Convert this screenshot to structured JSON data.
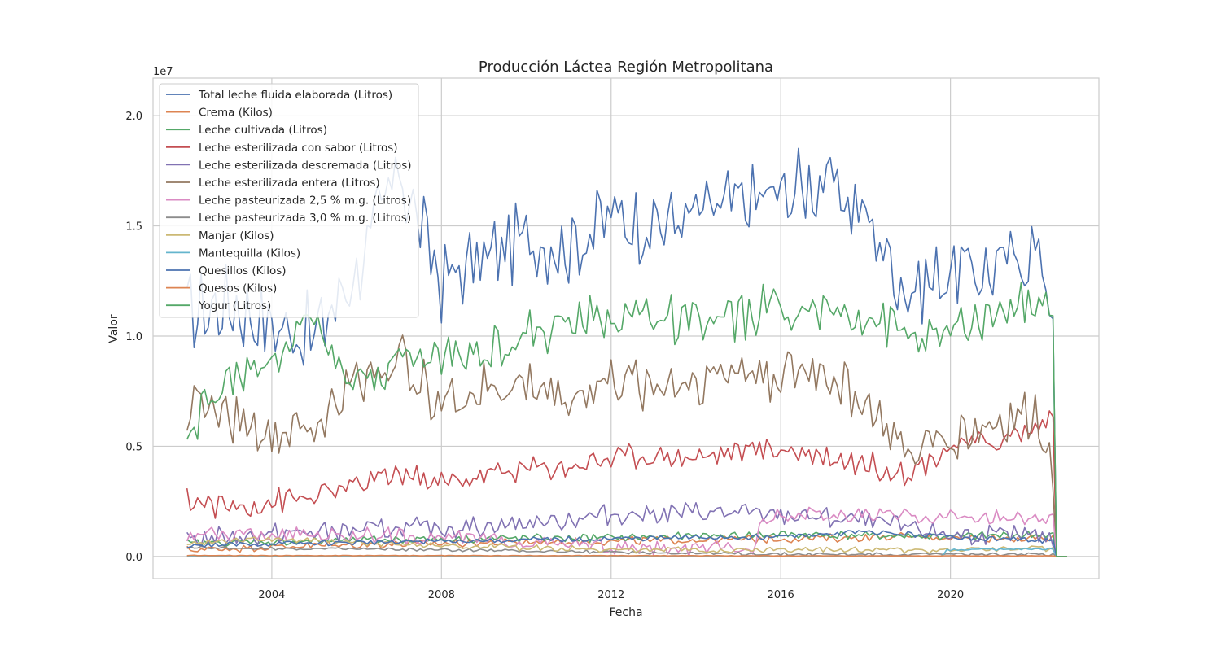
{
  "chart_data": {
    "type": "line",
    "title": "Producción Láctea Región Metropolitana",
    "xlabel": "Fecha",
    "ylabel": "Valor",
    "y_offset_text": "1e7",
    "xlim": [
      2001.2,
      2023.5
    ],
    "ylim": [
      -1000000,
      21700000
    ],
    "x_ticks": [
      2004,
      2008,
      2012,
      2016,
      2020
    ],
    "x_tick_labels": [
      "2004",
      "2008",
      "2012",
      "2016",
      "2020"
    ],
    "y_ticks": [
      0,
      5000000,
      10000000,
      15000000,
      20000000
    ],
    "y_tick_labels": [
      "0.0",
      "0.5",
      "1.0",
      "1.5",
      "2.0"
    ],
    "grid": true,
    "legend_position": "top-left",
    "series": [
      {
        "name": "Total leche fluida elaborada (Litros)",
        "color": "#4c72b0",
        "x": [
          2002,
          2003,
          2004,
          2005,
          2006,
          2007,
          2008,
          2009,
          2010,
          2011,
          2012,
          2013,
          2014,
          2015,
          2016,
          2017,
          2018,
          2019,
          2020,
          2021,
          2022,
          2022.45,
          2022.5,
          2022.6,
          2022.8
        ],
        "values": [
          11000000,
          11500000,
          10500000,
          10000000,
          13000000,
          17500000,
          12500000,
          13500000,
          14500000,
          14000000,
          15500000,
          15000000,
          15500000,
          16000000,
          16500000,
          17000000,
          15500000,
          12000000,
          13000000,
          13000000,
          14000000,
          11500000,
          0,
          0,
          0
        ],
        "amp": 1500000
      },
      {
        "name": "Crema (Kilos)",
        "color": "#dd8452",
        "x": [
          2002,
          2005,
          2008,
          2012,
          2016,
          2019,
          2022.45,
          2022.5,
          2022.8
        ],
        "values": [
          300000,
          500000,
          600000,
          700000,
          800000,
          900000,
          800000,
          0,
          0
        ],
        "amp": 150000
      },
      {
        "name": "Leche cultivada (Litros)",
        "color": "#55a868",
        "x": [
          2002,
          2005,
          2008,
          2012,
          2016,
          2020,
          2022.45,
          2022.5,
          2022.8
        ],
        "values": [
          600000,
          700000,
          800000,
          850000,
          1000000,
          900000,
          1000000,
          0,
          0
        ],
        "amp": 150000
      },
      {
        "name": "Leche esterilizada con sabor (Litros)",
        "color": "#c44e52",
        "x": [
          2002,
          2003,
          2004,
          2005,
          2006,
          2007,
          2008,
          2009,
          2010,
          2011,
          2012,
          2013,
          2014,
          2015,
          2016,
          2017,
          2018,
          2019,
          2020,
          2021,
          2022,
          2022.45,
          2022.5,
          2022.8
        ],
        "values": [
          2600000,
          2200000,
          2500000,
          2700000,
          3200000,
          3800000,
          3300000,
          3700000,
          4000000,
          4100000,
          4500000,
          4600000,
          4500000,
          4800000,
          4900000,
          4600000,
          4200000,
          3800000,
          5000000,
          5200000,
          5800000,
          6500000,
          0,
          0
        ],
        "amp": 500000
      },
      {
        "name": "Leche esterilizada descremada (Litros)",
        "color": "#8172b3",
        "x": [
          2002,
          2004,
          2006,
          2008,
          2010,
          2012,
          2014,
          2016,
          2018,
          2020,
          2022,
          2022.45,
          2022.5,
          2022.8
        ],
        "values": [
          800000,
          1000000,
          1200000,
          1300000,
          1500000,
          1900000,
          2000000,
          1900000,
          1600000,
          1000000,
          900000,
          800000,
          0,
          0
        ],
        "amp": 400000
      },
      {
        "name": "Leche esterilizada entera (Litros)",
        "color": "#937860",
        "x": [
          2002,
          2003,
          2004,
          2005,
          2006,
          2007,
          2008,
          2009,
          2010,
          2011,
          2012,
          2013,
          2014,
          2015,
          2016,
          2017,
          2018,
          2019,
          2020,
          2021,
          2022,
          2022.45,
          2022.5,
          2022.8
        ],
        "values": [
          7000000,
          6500000,
          5500000,
          5800000,
          8000000,
          9000000,
          7000000,
          7500000,
          7800000,
          7200000,
          8000000,
          7800000,
          8000000,
          8500000,
          8200000,
          8500000,
          7000000,
          4500000,
          5500000,
          6000000,
          6500000,
          4000000,
          0,
          0
        ],
        "amp": 1000000
      },
      {
        "name": "Leche pasteurizada 2,5 % m.g. (Litros)",
        "color": "#da8bc3",
        "x": [
          2002,
          2005,
          2008,
          2012,
          2015.4,
          2015.5,
          2018,
          2020,
          2022.45,
          2022.5,
          2022.8
        ],
        "values": [
          1000000,
          1000000,
          900000,
          400000,
          300000,
          1800000,
          1900000,
          1800000,
          1700000,
          0,
          0
        ],
        "amp": 300000
      },
      {
        "name": "Leche pasteurizada 3,0 % m.g. (Litros)",
        "color": "#8c8c8c",
        "x": [
          2002,
          2008,
          2012,
          2016,
          2020,
          2022.45,
          2022.5,
          2022.8
        ],
        "values": [
          400000,
          300000,
          200000,
          100000,
          100000,
          100000,
          0,
          0
        ],
        "amp": 60000
      },
      {
        "name": "Manjar (Kilos)",
        "color": "#ccb974",
        "x": [
          2002,
          2004,
          2008,
          2012,
          2016,
          2020,
          2022.45,
          2022.5,
          2022.8
        ],
        "values": [
          600000,
          800000,
          500000,
          300000,
          300000,
          300000,
          400000,
          0,
          0
        ],
        "amp": 120000
      },
      {
        "name": "Mantequilla (Kilos)",
        "color": "#64b5cd",
        "x": [
          2002,
          2012,
          2015,
          2016,
          2019.8,
          2019.9,
          2022.45,
          2022.5,
          2022.8
        ],
        "values": [
          0,
          0,
          0,
          0,
          0,
          300000,
          350000,
          0,
          0
        ],
        "amp": 40000
      },
      {
        "name": "Quesillos (Kilos)",
        "color": "#4c72b0",
        "x": [
          2002,
          2005,
          2008,
          2012,
          2016,
          2018,
          2020,
          2022.45,
          2022.5,
          2022.8
        ],
        "values": [
          500000,
          600000,
          700000,
          800000,
          900000,
          1100000,
          900000,
          700000,
          0,
          0
        ],
        "amp": 100000
      },
      {
        "name": "Quesos (Kilos)",
        "color": "#dd8452",
        "x": [
          2002,
          2005,
          2008,
          2012,
          2016,
          2020,
          2022.45,
          2022.5,
          2022.8
        ],
        "values": [
          50000,
          40000,
          40000,
          40000,
          30000,
          30000,
          30000,
          0,
          0
        ],
        "amp": 10000
      },
      {
        "name": "Yogur (Litros)",
        "color": "#55a868",
        "x": [
          2002,
          2003,
          2004,
          2005,
          2006,
          2007,
          2008,
          2009,
          2010,
          2011,
          2012,
          2013,
          2014,
          2015,
          2016,
          2017,
          2018,
          2019,
          2020,
          2021,
          2022,
          2022.45,
          2022.5,
          2022.8
        ],
        "values": [
          6000000,
          8000000,
          9000000,
          11000000,
          8000000,
          9000000,
          9000000,
          9500000,
          10000000,
          10500000,
          11000000,
          11000000,
          10500000,
          10800000,
          11500000,
          11000000,
          11000000,
          10000000,
          10000000,
          11000000,
          11500000,
          10800000,
          0,
          0
        ],
        "amp": 900000
      }
    ]
  }
}
